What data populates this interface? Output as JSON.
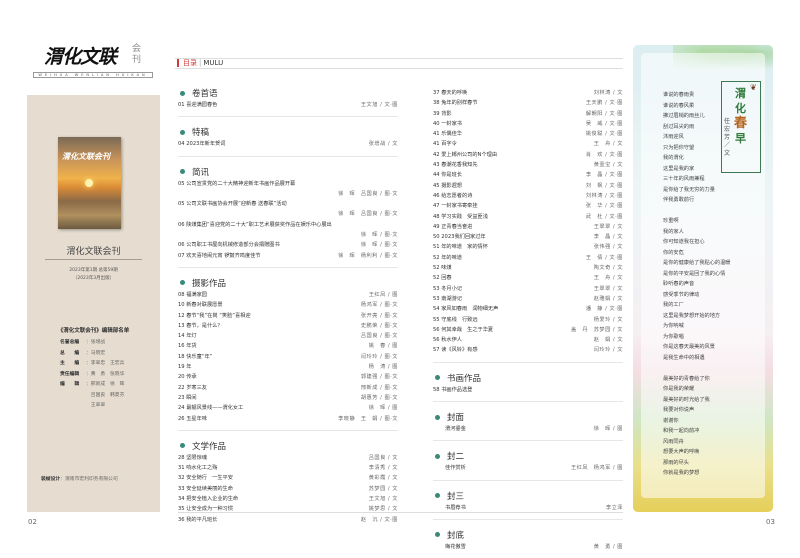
{
  "logo": {
    "title": "渭化文联",
    "subtitle": "会刊",
    "pinyin": "WEIHUA WENLIAN HUIKAN"
  },
  "cover": {
    "title": "渭化文联会刊"
  },
  "masthead": {
    "name": "渭化文联会刊",
    "issue": "2023年第1期  总第59期",
    "date": "（2023年3月出版）"
  },
  "editorial": {
    "title": "《渭化文联会刊》编辑部名单",
    "rows": [
      {
        "k": "名誉总编",
        "v": "张增战"
      },
      {
        "k": "总　　编",
        "v": "马晓宏"
      },
      {
        "k": "主　　编",
        "v": "李翠忠　王宏兵"
      },
      {
        "k": "责任编辑",
        "v": "黄　勇　张晓华"
      },
      {
        "k": "编　　辑",
        "v": "邢新成　徐　晖"
      },
      {
        "k": "",
        "v": "吕国良　韩夏芬"
      },
      {
        "k": "",
        "v": "王翠翠"
      }
    ],
    "design_label": "装帧设计",
    "design_value": "：渭南市宏利印务有限公司"
  },
  "page_left": "02",
  "page_right": "03",
  "header": {
    "cn": "目录",
    "en": "MULU"
  },
  "toc_left": [
    {
      "title": "卷首语",
      "items": [
        {
          "n": "01",
          "t": "喜迎满园春色",
          "c": "王文旭 / 文·图"
        }
      ]
    },
    {
      "title": "特稿",
      "items": [
        {
          "n": "04",
          "t": "2023年新年贺词",
          "c": "张增战 / 文"
        }
      ]
    },
    {
      "title": "简讯",
      "items": [
        {
          "n": "05",
          "t": "公司宣贯党的二十大精神迎新年书画作品展开幕",
          "b": "徐　晖　吕国良 / 图·文"
        },
        {
          "n": "05",
          "t": "公司文联书画协会开展“迎新春 送春联”活动",
          "b": "徐　晖　吕国良 / 图·文"
        },
        {
          "n": "06",
          "t": "陕煤集团“喜迎党的二十大”职工艺术展获奖作品在娱乐中心展出",
          "b": "徐　晖 / 图·文"
        },
        {
          "n": "06",
          "t": "公司职工书屋向机械修造部分会捐赠图书",
          "c": "徐　晖 / 图·文"
        },
        {
          "n": "07",
          "t": "欢天喜地闹元宵 锣鼓齐鸣度佳节",
          "c": "徐　晖　杨利利 / 图·文"
        }
      ]
    },
    {
      "title": "摄影作品",
      "items": [
        {
          "n": "08",
          "t": "福满家园",
          "c": "王红凤 / 图"
        },
        {
          "n": "10",
          "t": "新春对联展愿景",
          "c": "杨鸿军 / 图·文"
        },
        {
          "n": "12",
          "t": "春节“我”在岗 “笑脸”喜相迎",
          "c": "张开亮 / 图·文"
        },
        {
          "n": "13",
          "t": "春节，是什么？",
          "c": "史鹏荣 / 图·文"
        },
        {
          "n": "14",
          "t": "年灯",
          "c": "吕国良 / 图·文"
        },
        {
          "n": "16",
          "t": "年货",
          "c": "姚　春 / 图"
        },
        {
          "n": "18",
          "t": "快乐童“年”",
          "c": "闫玲玲 / 图·文"
        },
        {
          "n": "19",
          "t": "年",
          "c": "杨　涛 / 图"
        },
        {
          "n": "20",
          "t": "传承",
          "c": "郭建强 / 图·文"
        },
        {
          "n": "22",
          "t": "岁寒三友",
          "c": "邢新成 / 图·文"
        },
        {
          "n": "23",
          "t": "瞬间",
          "c": "胡惠芳 / 图·文"
        },
        {
          "n": "24",
          "t": "最靓风景线——渭化女工",
          "c": "徐　晖 / 图"
        },
        {
          "n": "26",
          "t": "五星年味",
          "c": "李晓静　王　娟 / 图·文"
        }
      ]
    },
    {
      "title": "文学作品",
      "items": [
        {
          "n": "28",
          "t": "坚限惊魂",
          "c": "吕国良 / 文"
        },
        {
          "n": "31",
          "t": "响水化工之殇",
          "c": "李清秀 / 文"
        },
        {
          "n": "32",
          "t": "安全随行　一生平安",
          "c": "黄彩霞 / 文"
        },
        {
          "n": "33",
          "t": "安全延续美丽的生命",
          "c": "苏梦园 / 文"
        },
        {
          "n": "34",
          "t": "把安全植入企业的生命",
          "c": "王文旭 / 文"
        },
        {
          "n": "35",
          "t": "让安全成为一种习惯",
          "c": "姚梦思 / 文"
        },
        {
          "n": "36",
          "t": "我的平凡班长",
          "c": "赵　沉 / 文·图"
        }
      ]
    }
  ],
  "toc_right": [
    {
      "title": "",
      "items": [
        {
          "n": "37",
          "t": "春天的呼唤",
          "c": "刘林涛 / 文"
        },
        {
          "n": "38",
          "t": "兔年的别样春节",
          "c": "王天鹏 / 文·图"
        },
        {
          "n": "39",
          "t": "背影",
          "c": "解朝阳 / 文·图"
        },
        {
          "n": "40",
          "t": "一封家书",
          "c": "吴　威 / 文·图"
        },
        {
          "n": "41",
          "t": "乐偶佳华",
          "c": "姚俊聪 / 文·图"
        },
        {
          "n": "41",
          "t": "百字令",
          "c": "王　舟 / 文"
        },
        {
          "n": "42",
          "t": "爱上郴州公司的N个理由",
          "c": "肖　欢 / 文·图"
        },
        {
          "n": "43",
          "t": "春潮花香我知先",
          "c": "黄壹宝 / 文"
        },
        {
          "n": "44",
          "t": "你是班长",
          "c": "李　晶 / 文·图"
        },
        {
          "n": "45",
          "t": "摄影遐想",
          "c": "刘　枫 / 文·图"
        },
        {
          "n": "46",
          "t": "给志愿者的诗",
          "c": "刘林涛 / 文·图"
        },
        {
          "n": "47",
          "t": "一封家书寄牵挂",
          "c": "张　华 / 文·图"
        },
        {
          "n": "48",
          "t": "学习实践　受益匪浅",
          "c": "武　杜 / 文·图"
        },
        {
          "n": "49",
          "t": "正青春当奋进",
          "c": "王翠翠 / 文"
        },
        {
          "n": "50",
          "t": "2023我们回家过年",
          "c": "李　晶 / 文"
        },
        {
          "n": "51",
          "t": "年的味道　家的情怀",
          "c": "张伟强 / 文"
        },
        {
          "n": "52",
          "t": "年的味道",
          "c": "王　倩 / 文·图"
        },
        {
          "n": "52",
          "t": "味煤",
          "c": "陶文奇 / 文"
        },
        {
          "n": "52",
          "t": "回春",
          "c": "王　舟 / 文"
        },
        {
          "n": "53",
          "t": "冬月小记",
          "c": "王翠翠 / 文"
        },
        {
          "n": "53",
          "t": "南湖游记",
          "c": "赵雅娟 / 文"
        },
        {
          "n": "54",
          "t": "家风如春雨　润物细无声",
          "c": "潘　静 / 文·图"
        },
        {
          "n": "55",
          "t": "守底线　行致远",
          "c": "杨爱玲 / 文"
        },
        {
          "n": "56",
          "t": "何其幸哉　生之于华夏",
          "c": "盖　丹　苏梦园 / 文"
        },
        {
          "n": "56",
          "t": "秋水伊人",
          "c": "赵　娟 / 文"
        },
        {
          "n": "57",
          "t": "读《风铃》有感",
          "c": "闫玲玲 / 文"
        }
      ]
    },
    {
      "title": "书画作品",
      "items": [
        {
          "n": "58",
          "t": "书画作品选登",
          "c": ""
        }
      ]
    },
    {
      "title": "封面",
      "items": [
        {
          "n": "",
          "t": "渭河鎏金",
          "c": "徐　晖 / 图"
        }
      ]
    },
    {
      "title": "封二",
      "items": [
        {
          "n": "",
          "t": "佳作赏析",
          "c": "王红凤　杨鸿军 / 图"
        }
      ]
    },
    {
      "title": "封三",
      "items": [
        {
          "n": "",
          "t": "书眉荐书",
          "c": "李立泽"
        }
      ]
    },
    {
      "title": "封底",
      "items": [
        {
          "n": "",
          "t": "梅花傲雪",
          "c": "黄　勇 / 图"
        }
      ]
    }
  ],
  "poem": {
    "title": [
      "渭",
      "化",
      "春",
      "早"
    ],
    "author": "任宏芳／文",
    "stanzas": [
      [
        "谁说的春雨贵",
        "谁说的春风柔",
        "拂过眉梢的雨丝儿",
        "刮过耳尖的雨",
        "沐雨迎风",
        "只为把你守望",
        "我的渭化",
        "这里是我的家",
        "三十年的风雨兼程",
        "是你给了我无穷的力量",
        "伴我勇敢前行"
      ],
      [
        "珍重啊",
        "我的家人",
        "你可知道我在担心",
        "你的安危",
        "是你的健康给了我贴心的温暖",
        "是你的平安是回了我的心情",
        "聆听春的声音",
        "感受季节的律动",
        "我的工厂",
        "这里是我梦想开始的地方",
        "为你呐喊",
        "为你歌唱",
        "你是这春天最美的风景",
        "是我生命中的相遇"
      ],
      [
        "最美好的青春给了你",
        "你是我的荣耀",
        "最美好的时光给了我",
        "我要对你说声",
        "谢谢你",
        "和我一起向前冲",
        "风雨同舟",
        "想要大声的呼唤",
        "那雨的尽头",
        "你就是我的梦想"
      ]
    ]
  },
  "colors": {
    "accent_red": "#d0393a",
    "section_dot": "#3a8a7a",
    "left_panel": "#e6ddd0"
  }
}
